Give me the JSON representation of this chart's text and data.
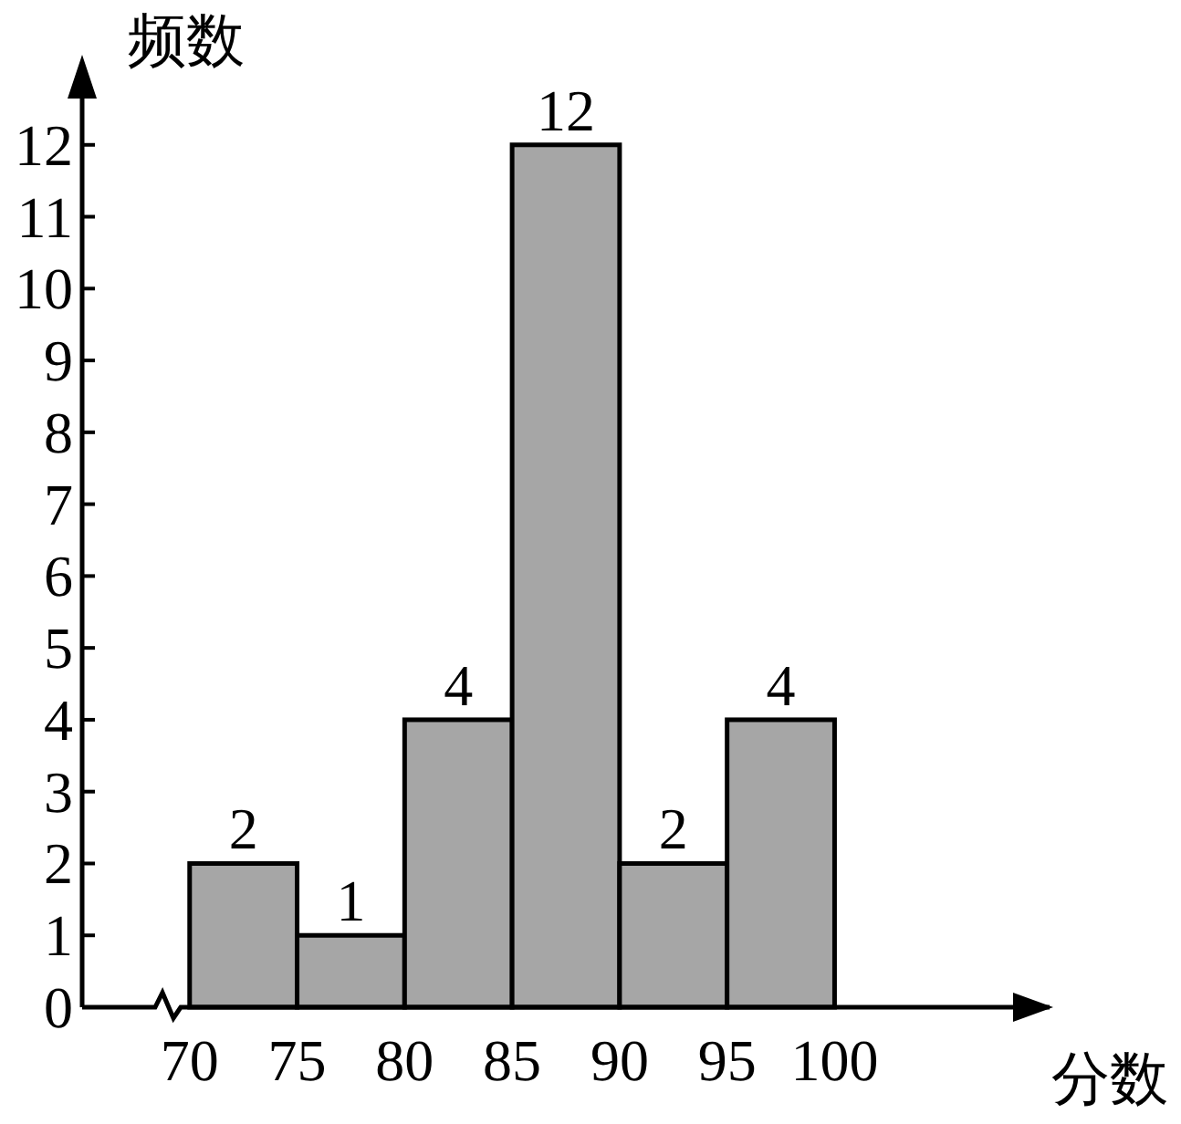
{
  "chart_data": {
    "type": "histogram",
    "xlabel": "分数",
    "ylabel": "频数",
    "bins": [
      70,
      75,
      80,
      85,
      90,
      95,
      100
    ],
    "values": [
      2,
      1,
      4,
      12,
      2,
      4
    ],
    "color": "#a6a6a6",
    "data_labels": true,
    "xlim": [
      65,
      110
    ],
    "ylim": [
      0,
      13
    ],
    "xticks": [
      70,
      75,
      80,
      85,
      90,
      95,
      100
    ],
    "yticks": [
      0,
      1,
      2,
      3,
      4,
      5,
      6,
      7,
      8,
      9,
      10,
      11,
      12
    ],
    "grid": false
  }
}
